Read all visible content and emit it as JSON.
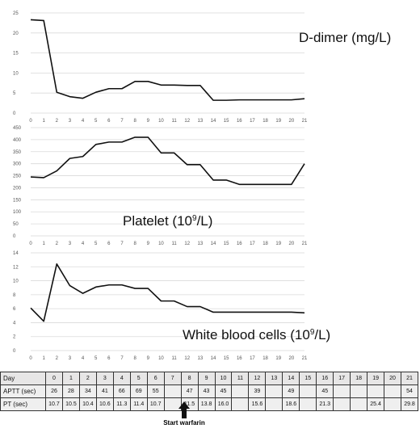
{
  "chart_data": [
    {
      "type": "line",
      "title": "D-dimer (mg/L)",
      "x": [
        0,
        1,
        2,
        3,
        4,
        5,
        6,
        7,
        8,
        9,
        10,
        11,
        12,
        13,
        14,
        15,
        16,
        17,
        18,
        19,
        20,
        21
      ],
      "values": [
        23.3,
        23.1,
        5.2,
        4.1,
        3.7,
        5.2,
        6.1,
        6.1,
        7.9,
        7.9,
        7.0,
        7.0,
        6.9,
        6.9,
        3.2,
        3.2,
        3.3,
        3.3,
        3.3,
        3.3,
        3.3,
        3.6
      ],
      "ylim": [
        0,
        25
      ],
      "yticks": [
        0,
        5,
        10,
        15,
        20,
        25
      ],
      "grid": true
    },
    {
      "type": "line",
      "title_main": "Platelet (10",
      "title_sup": "9",
      "title_end": "/L)",
      "x": [
        0,
        1,
        2,
        3,
        4,
        5,
        6,
        7,
        8,
        9,
        10,
        11,
        12,
        13,
        14,
        15,
        16,
        17,
        18,
        19,
        20,
        21
      ],
      "values": [
        245,
        242,
        270,
        322,
        330,
        380,
        390,
        390,
        410,
        410,
        345,
        345,
        296,
        296,
        232,
        232,
        214,
        214,
        214,
        214,
        214,
        300
      ],
      "ylim": [
        0,
        450
      ],
      "yticks": [
        0,
        50,
        100,
        150,
        200,
        250,
        300,
        350,
        400,
        450
      ],
      "grid": true
    },
    {
      "type": "line",
      "title_main": "White blood cells (10",
      "title_sup": "9",
      "title_end": "/L)",
      "x": [
        0,
        1,
        2,
        3,
        4,
        5,
        6,
        7,
        8,
        9,
        10,
        11,
        12,
        13,
        14,
        15,
        16,
        17,
        18,
        19,
        20,
        21
      ],
      "values": [
        6.1,
        4.2,
        12.4,
        9.3,
        8.2,
        9.1,
        9.4,
        9.4,
        8.9,
        8.9,
        7.1,
        7.1,
        6.3,
        6.3,
        5.5,
        5.5,
        5.5,
        5.5,
        5.5,
        5.5,
        5.5,
        5.4
      ],
      "ylim": [
        0,
        14
      ],
      "yticks": [
        0,
        2,
        4,
        6,
        8,
        10,
        12,
        14
      ],
      "grid": true
    }
  ],
  "table": {
    "rows": [
      {
        "label": "Day",
        "cells": [
          "0",
          "1",
          "2",
          "3",
          "4",
          "5",
          "6",
          "7",
          "8",
          "9",
          "10",
          "11",
          "12",
          "13",
          "14",
          "15",
          "16",
          "17",
          "18",
          "19",
          "20",
          "21"
        ]
      },
      {
        "label": "APTT (sec)",
        "cells": [
          "26",
          "28",
          "34",
          "41",
          "66",
          "69",
          "55",
          "",
          "47",
          "43",
          "45",
          "",
          "39",
          "",
          "49",
          "",
          "45",
          "",
          "",
          "",
          "",
          "54"
        ]
      },
      {
        "label": "PT (sec)",
        "cells": [
          "10.7",
          "10.5",
          "10.4",
          "10.6",
          "11.3",
          "11.4",
          "10.7",
          "",
          "11.5",
          "13.8",
          "16.0",
          "",
          "15.6",
          "",
          "18.6",
          "",
          "21.3",
          "",
          "",
          "25.4",
          "",
          "29.8"
        ]
      }
    ]
  },
  "annotation": {
    "label": "Start warfarin",
    "day": 7
  }
}
